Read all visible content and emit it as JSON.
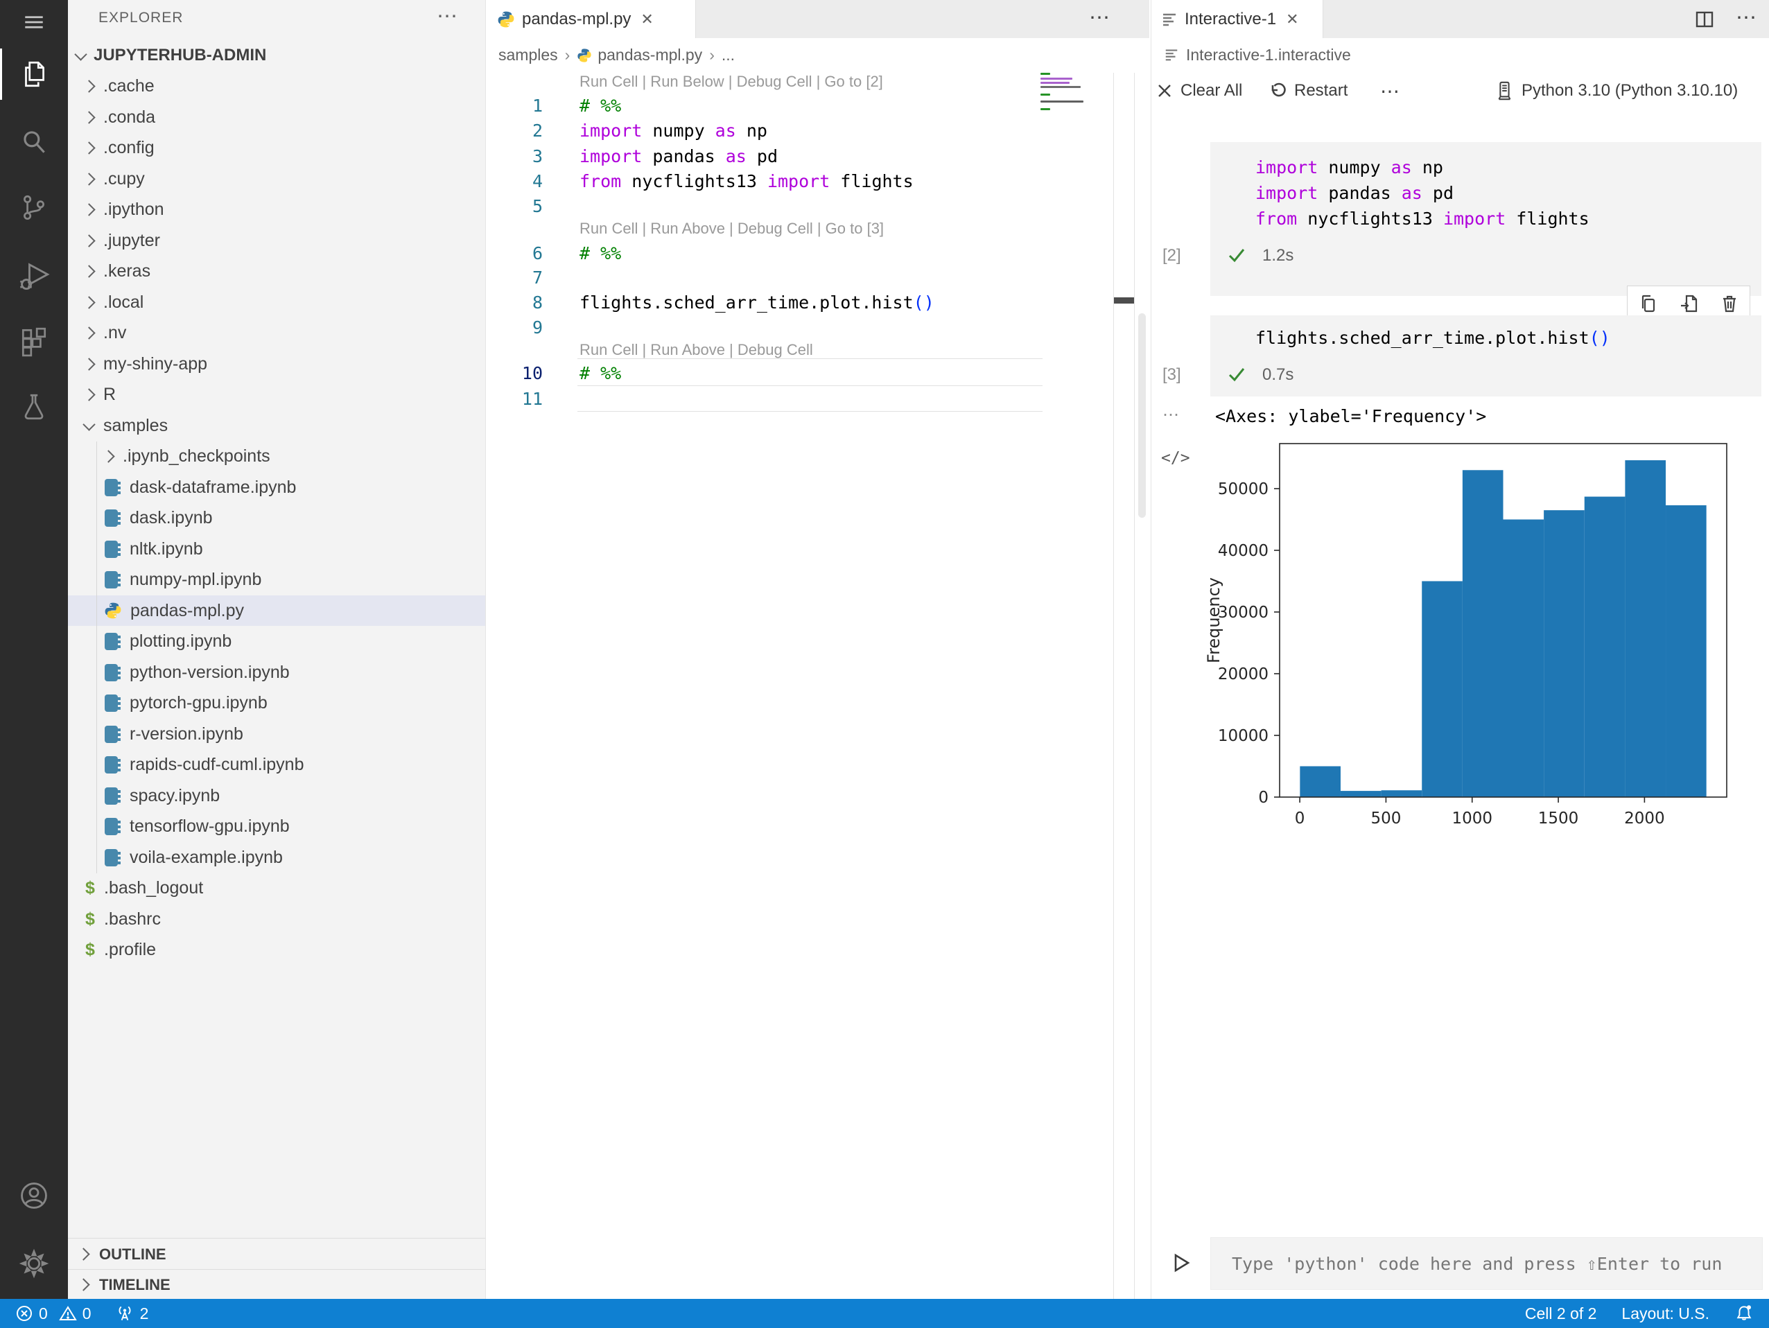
{
  "colors": {
    "statusbar": "#0f80d2",
    "activitybar": "#2c2c2c",
    "sidebar_bg": "#f3f3f3",
    "selection_bg": "#e4e6f1",
    "keyword": "#af00db",
    "comment": "#008000",
    "paren": "#0431fa",
    "bar_color": "#1f77b4",
    "check_green": "#388a34"
  },
  "activity_bar": {
    "items": [
      "menu",
      "explorer",
      "search",
      "source-control",
      "run-debug",
      "extensions",
      "testing",
      "account",
      "settings"
    ]
  },
  "explorer": {
    "title": "EXPLORER",
    "actions": "⋯",
    "root": "JUPYTERHUB-ADMIN",
    "tree": [
      {
        "label": ".cache",
        "type": "folder",
        "depth": 1
      },
      {
        "label": ".conda",
        "type": "folder",
        "depth": 1
      },
      {
        "label": ".config",
        "type": "folder",
        "depth": 1
      },
      {
        "label": ".cupy",
        "type": "folder",
        "depth": 1
      },
      {
        "label": ".ipython",
        "type": "folder",
        "depth": 1
      },
      {
        "label": ".jupyter",
        "type": "folder",
        "depth": 1
      },
      {
        "label": ".keras",
        "type": "folder",
        "depth": 1
      },
      {
        "label": ".local",
        "type": "folder",
        "depth": 1
      },
      {
        "label": ".nv",
        "type": "folder",
        "depth": 1
      },
      {
        "label": "my-shiny-app",
        "type": "folder",
        "depth": 1
      },
      {
        "label": "R",
        "type": "folder",
        "depth": 1
      },
      {
        "label": "samples",
        "type": "folder-open",
        "depth": 1
      },
      {
        "label": ".ipynb_checkpoints",
        "type": "folder",
        "depth": 2
      },
      {
        "label": "dask-dataframe.ipynb",
        "type": "notebook",
        "depth": 2
      },
      {
        "label": "dask.ipynb",
        "type": "notebook",
        "depth": 2
      },
      {
        "label": "nltk.ipynb",
        "type": "notebook",
        "depth": 2
      },
      {
        "label": "numpy-mpl.ipynb",
        "type": "notebook",
        "depth": 2
      },
      {
        "label": "pandas-mpl.py",
        "type": "python",
        "depth": 2,
        "selected": true
      },
      {
        "label": "plotting.ipynb",
        "type": "notebook",
        "depth": 2
      },
      {
        "label": "python-version.ipynb",
        "type": "notebook",
        "depth": 2
      },
      {
        "label": "pytorch-gpu.ipynb",
        "type": "notebook",
        "depth": 2
      },
      {
        "label": "r-version.ipynb",
        "type": "notebook",
        "depth": 2
      },
      {
        "label": "rapids-cudf-cuml.ipynb",
        "type": "notebook",
        "depth": 2
      },
      {
        "label": "spacy.ipynb",
        "type": "notebook",
        "depth": 2
      },
      {
        "label": "tensorflow-gpu.ipynb",
        "type": "notebook",
        "depth": 2
      },
      {
        "label": "voila-example.ipynb",
        "type": "notebook",
        "depth": 2
      },
      {
        "label": ".bash_logout",
        "type": "shell",
        "depth": 1
      },
      {
        "label": ".bashrc",
        "type": "shell",
        "depth": 1
      },
      {
        "label": ".profile",
        "type": "shell",
        "depth": 1
      }
    ],
    "bottom_sections": [
      "OUTLINE",
      "TIMELINE"
    ]
  },
  "editor": {
    "tab": {
      "label": "pandas-mpl.py",
      "close": "✕"
    },
    "tab_actions": "⋯",
    "breadcrumb": {
      "parts": [
        "samples",
        "pandas-mpl.py",
        "..."
      ]
    },
    "rows": [
      {
        "type": "lens",
        "text": "Run Cell | Run Below | Debug Cell | Go to [2]"
      },
      {
        "type": "code",
        "n": "1",
        "tokens": [
          [
            "cmt",
            "# %%"
          ]
        ]
      },
      {
        "type": "code",
        "n": "2",
        "tokens": [
          [
            "kw",
            "import"
          ],
          [
            "tx",
            " numpy "
          ],
          [
            "kw",
            "as"
          ],
          [
            "tx",
            " np"
          ]
        ]
      },
      {
        "type": "code",
        "n": "3",
        "tokens": [
          [
            "kw",
            "import"
          ],
          [
            "tx",
            " pandas "
          ],
          [
            "kw",
            "as"
          ],
          [
            "tx",
            " pd"
          ]
        ]
      },
      {
        "type": "code",
        "n": "4",
        "tokens": [
          [
            "kw",
            "from"
          ],
          [
            "tx",
            " nycflights13 "
          ],
          [
            "kw",
            "import"
          ],
          [
            "tx",
            " flights"
          ]
        ]
      },
      {
        "type": "code",
        "n": "5",
        "tokens": []
      },
      {
        "type": "lens",
        "text": "Run Cell | Run Above | Debug Cell | Go to [3]"
      },
      {
        "type": "code",
        "n": "6",
        "tokens": [
          [
            "cmt",
            "# %%"
          ]
        ]
      },
      {
        "type": "code",
        "n": "7",
        "tokens": []
      },
      {
        "type": "code",
        "n": "8",
        "tokens": [
          [
            "tx",
            "flights.sched_arr_time.plot.hist"
          ],
          [
            "pa",
            "()"
          ]
        ]
      },
      {
        "type": "code",
        "n": "9",
        "tokens": []
      },
      {
        "type": "lens",
        "text": "Run Cell | Run Above | Debug Cell"
      },
      {
        "type": "code",
        "n": "10",
        "tokens": [
          [
            "cmt",
            "# %%"
          ]
        ],
        "active": true
      },
      {
        "type": "code",
        "n": "11",
        "tokens": []
      }
    ]
  },
  "interactive": {
    "tab": {
      "label": "Interactive-1",
      "close": "✕"
    },
    "actions": {
      "split": "split-editor",
      "more": "⋯"
    },
    "breadcrumb": "Interactive-1.interactive",
    "toolbar": {
      "clear": "Clear All",
      "restart": "Restart",
      "more": "⋯",
      "kernel": "Python 3.10 (Python 3.10.10)"
    },
    "cells": [
      {
        "exec": "[2]",
        "time": "1.2s",
        "lines": [
          [
            [
              "kw",
              "import"
            ],
            [
              "tx",
              " numpy "
            ],
            [
              "kw",
              "as"
            ],
            [
              "tx",
              " np"
            ]
          ],
          [
            [
              "kw",
              "import"
            ],
            [
              "tx",
              " pandas "
            ],
            [
              "kw",
              "as"
            ],
            [
              "tx",
              " pd"
            ]
          ],
          [
            [
              "kw",
              "from"
            ],
            [
              "tx",
              " nycflights13 "
            ],
            [
              "kw",
              "import"
            ],
            [
              "tx",
              " flights"
            ]
          ]
        ]
      },
      {
        "exec": "[3]",
        "time": "0.7s",
        "lines": [
          [
            [
              "tx",
              "flights.sched_arr_time.plot.hist"
            ],
            [
              "pa",
              "()"
            ]
          ]
        ]
      }
    ],
    "more_output": "⋯",
    "output_text": "<Axes: ylabel='Frequency'>",
    "expand_code": "</>",
    "input_placeholder": "Type 'python' code here and press ⇧Enter to run"
  },
  "chart_data": {
    "type": "bar",
    "title": "",
    "xlabel": "",
    "ylabel": "Frequency",
    "bin_start": 1,
    "bin_width": 235.8,
    "counts": [
      5000,
      1000,
      1100,
      35000,
      53000,
      45000,
      46500,
      48700,
      54600,
      47300
    ],
    "xticks": [
      0,
      500,
      1000,
      1500,
      2000
    ],
    "yticks": [
      0,
      10000,
      20000,
      30000,
      40000,
      50000
    ],
    "xlim": [
      -117,
      2477
    ],
    "ylim": [
      0,
      57300
    ],
    "grid": false,
    "legend": "none",
    "bar_color": "#1f77b4"
  },
  "status_bar": {
    "errors": "0",
    "warnings": "0",
    "ports": "2",
    "cell": "Cell 2 of 2",
    "layout": "Layout: U.S."
  }
}
